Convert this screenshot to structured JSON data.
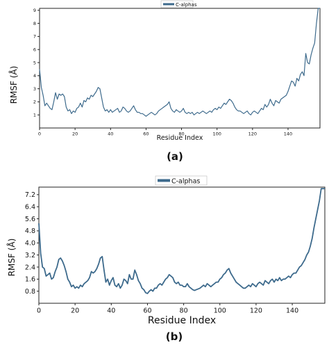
{
  "chart_data": [
    {
      "type": "line",
      "panel_label": "(a)",
      "xlabel": "Residue Index",
      "ylabel": "RMSF (Å)",
      "legend": "C-alphas",
      "legend_position": "top-center",
      "grid": false,
      "xlim": [
        0,
        158
      ],
      "ylim": [
        0,
        9.15
      ],
      "xticks": [
        "0",
        "20",
        "40",
        "60",
        "80",
        "100",
        "120",
        "140"
      ],
      "yticks": [
        "1",
        "2",
        "3",
        "4",
        "5",
        "6",
        "7",
        "8",
        "9"
      ],
      "color": "#3d6a8c",
      "series": [
        {
          "name": "C-alphas",
          "x": [
            0,
            1,
            2,
            3,
            4,
            5,
            6,
            7,
            8,
            9,
            10,
            11,
            12,
            13,
            14,
            15,
            16,
            17,
            18,
            19,
            20,
            21,
            22,
            23,
            24,
            25,
            26,
            27,
            28,
            29,
            30,
            31,
            32,
            33,
            34,
            35,
            36,
            37,
            38,
            39,
            40,
            41,
            42,
            43,
            44,
            45,
            46,
            47,
            48,
            49,
            50,
            51,
            52,
            53,
            54,
            55,
            56,
            57,
            58,
            59,
            60,
            61,
            62,
            63,
            64,
            65,
            66,
            67,
            68,
            69,
            70,
            71,
            72,
            73,
            74,
            75,
            76,
            77,
            78,
            79,
            80,
            81,
            82,
            83,
            84,
            85,
            86,
            87,
            88,
            89,
            90,
            91,
            92,
            93,
            94,
            95,
            96,
            97,
            98,
            99,
            100,
            101,
            102,
            103,
            104,
            105,
            106,
            107,
            108,
            109,
            110,
            111,
            112,
            113,
            114,
            115,
            116,
            117,
            118,
            119,
            120,
            121,
            122,
            123,
            124,
            125,
            126,
            127,
            128,
            129,
            130,
            131,
            132,
            133,
            134,
            135,
            136,
            137,
            138,
            139,
            140,
            141,
            142,
            143,
            144,
            145,
            146,
            147,
            148,
            149,
            150,
            151,
            152,
            153,
            154,
            155,
            156,
            157,
            158
          ],
          "y": [
            4.5,
            3.1,
            2.5,
            1.7,
            1.9,
            1.7,
            1.5,
            1.4,
            2.0,
            2.7,
            2.2,
            2.6,
            2.5,
            2.6,
            2.4,
            1.6,
            1.3,
            1.4,
            1.1,
            1.3,
            1.2,
            1.5,
            1.6,
            1.9,
            1.6,
            2.1,
            2.0,
            2.3,
            2.2,
            2.5,
            2.4,
            2.6,
            2.8,
            3.1,
            3.0,
            2.3,
            1.6,
            1.3,
            1.4,
            1.2,
            1.4,
            1.2,
            1.3,
            1.4,
            1.5,
            1.2,
            1.3,
            1.6,
            1.5,
            1.3,
            1.2,
            1.3,
            1.5,
            1.7,
            1.4,
            1.2,
            1.2,
            1.1,
            1.1,
            1.0,
            0.9,
            1.0,
            1.1,
            1.2,
            1.1,
            1.0,
            1.1,
            1.3,
            1.4,
            1.5,
            1.6,
            1.7,
            1.8,
            2.0,
            1.5,
            1.3,
            1.2,
            1.4,
            1.3,
            1.2,
            1.3,
            1.5,
            1.2,
            1.1,
            1.2,
            1.1,
            1.2,
            1.0,
            1.1,
            1.2,
            1.1,
            1.2,
            1.3,
            1.2,
            1.1,
            1.2,
            1.3,
            1.2,
            1.4,
            1.5,
            1.4,
            1.6,
            1.5,
            1.7,
            1.9,
            1.8,
            2.0,
            2.2,
            2.1,
            1.9,
            1.6,
            1.4,
            1.3,
            1.3,
            1.2,
            1.1,
            1.2,
            1.3,
            1.1,
            1.0,
            1.2,
            1.3,
            1.2,
            1.1,
            1.3,
            1.5,
            1.4,
            1.8,
            1.6,
            1.8,
            2.2,
            1.9,
            1.7,
            2.1,
            2.0,
            1.9,
            2.2,
            2.3,
            2.4,
            2.5,
            2.8,
            3.2,
            3.6,
            3.5,
            3.2,
            3.8,
            3.6,
            4.1,
            4.3,
            4.0,
            5.7,
            5.0,
            4.9,
            5.6,
            6.1,
            6.5,
            8.0,
            9.2,
            9.2
          ]
        }
      ]
    },
    {
      "type": "line",
      "panel_label": "(b)",
      "xlabel": "Residue Index",
      "ylabel": "RMSF (Å)",
      "legend": "C-alphas",
      "legend_position": "top-center",
      "grid": false,
      "xlim": [
        0,
        158
      ],
      "ylim": [
        0,
        7.7
      ],
      "xticks": [
        "0",
        "20",
        "40",
        "60",
        "80",
        "100",
        "120",
        "140"
      ],
      "yticks": [
        "0.8",
        "1.6",
        "2.4",
        "3.2",
        "4.0",
        "4.8",
        "5.6",
        "6.4",
        "7.2"
      ],
      "color": "#3d6a8c",
      "series": [
        {
          "name": "C-alphas",
          "x": [
            0,
            1,
            2,
            3,
            4,
            5,
            6,
            7,
            8,
            9,
            10,
            11,
            12,
            13,
            14,
            15,
            16,
            17,
            18,
            19,
            20,
            21,
            22,
            23,
            24,
            25,
            26,
            27,
            28,
            29,
            30,
            31,
            32,
            33,
            34,
            35,
            36,
            37,
            38,
            39,
            40,
            41,
            42,
            43,
            44,
            45,
            46,
            47,
            48,
            49,
            50,
            51,
            52,
            53,
            54,
            55,
            56,
            57,
            58,
            59,
            60,
            61,
            62,
            63,
            64,
            65,
            66,
            67,
            68,
            69,
            70,
            71,
            72,
            73,
            74,
            75,
            76,
            77,
            78,
            79,
            80,
            81,
            82,
            83,
            84,
            85,
            86,
            87,
            88,
            89,
            90,
            91,
            92,
            93,
            94,
            95,
            96,
            97,
            98,
            99,
            100,
            101,
            102,
            103,
            104,
            105,
            106,
            107,
            108,
            109,
            110,
            111,
            112,
            113,
            114,
            115,
            116,
            117,
            118,
            119,
            120,
            121,
            122,
            123,
            124,
            125,
            126,
            127,
            128,
            129,
            130,
            131,
            132,
            133,
            134,
            135,
            136,
            137,
            138,
            139,
            140,
            141,
            142,
            143,
            144,
            145,
            146,
            147,
            148,
            149,
            150,
            151,
            152,
            153,
            154,
            155,
            156,
            157,
            158
          ],
          "y": [
            5.3,
            3.3,
            2.4,
            2.3,
            1.8,
            1.9,
            2.0,
            1.6,
            1.7,
            2.1,
            2.4,
            2.9,
            3.0,
            2.8,
            2.5,
            2.1,
            1.6,
            1.4,
            1.1,
            1.2,
            1.0,
            1.1,
            1.0,
            1.2,
            1.1,
            1.3,
            1.4,
            1.5,
            1.7,
            2.1,
            2.0,
            2.1,
            2.3,
            2.6,
            3.0,
            3.1,
            2.2,
            1.4,
            1.6,
            1.2,
            1.5,
            1.7,
            1.2,
            1.1,
            1.3,
            1.0,
            1.2,
            1.6,
            1.5,
            1.3,
            1.9,
            1.6,
            1.6,
            2.2,
            1.9,
            1.5,
            1.3,
            1.0,
            0.9,
            0.7,
            0.65,
            0.8,
            0.9,
            0.8,
            1.0,
            1.0,
            1.2,
            1.3,
            1.2,
            1.4,
            1.6,
            1.7,
            1.9,
            1.8,
            1.7,
            1.4,
            1.3,
            1.4,
            1.2,
            1.2,
            1.1,
            1.1,
            1.3,
            1.1,
            1.0,
            0.9,
            0.85,
            0.9,
            0.95,
            1.0,
            1.1,
            1.2,
            1.1,
            1.3,
            1.2,
            1.1,
            1.2,
            1.3,
            1.4,
            1.4,
            1.6,
            1.7,
            1.9,
            2.0,
            2.2,
            2.3,
            2.0,
            1.8,
            1.6,
            1.4,
            1.3,
            1.2,
            1.1,
            1.0,
            1.0,
            1.1,
            1.2,
            1.1,
            1.3,
            1.2,
            1.1,
            1.3,
            1.4,
            1.3,
            1.2,
            1.5,
            1.4,
            1.3,
            1.5,
            1.6,
            1.4,
            1.6,
            1.5,
            1.7,
            1.5,
            1.6,
            1.6,
            1.7,
            1.8,
            1.7,
            1.9,
            2.0,
            2.0,
            2.2,
            2.4,
            2.5,
            2.7,
            2.9,
            3.2,
            3.4,
            3.8,
            4.3,
            5.0,
            5.6,
            6.2,
            6.8,
            7.6,
            7.6,
            7.6
          ]
        }
      ]
    }
  ]
}
